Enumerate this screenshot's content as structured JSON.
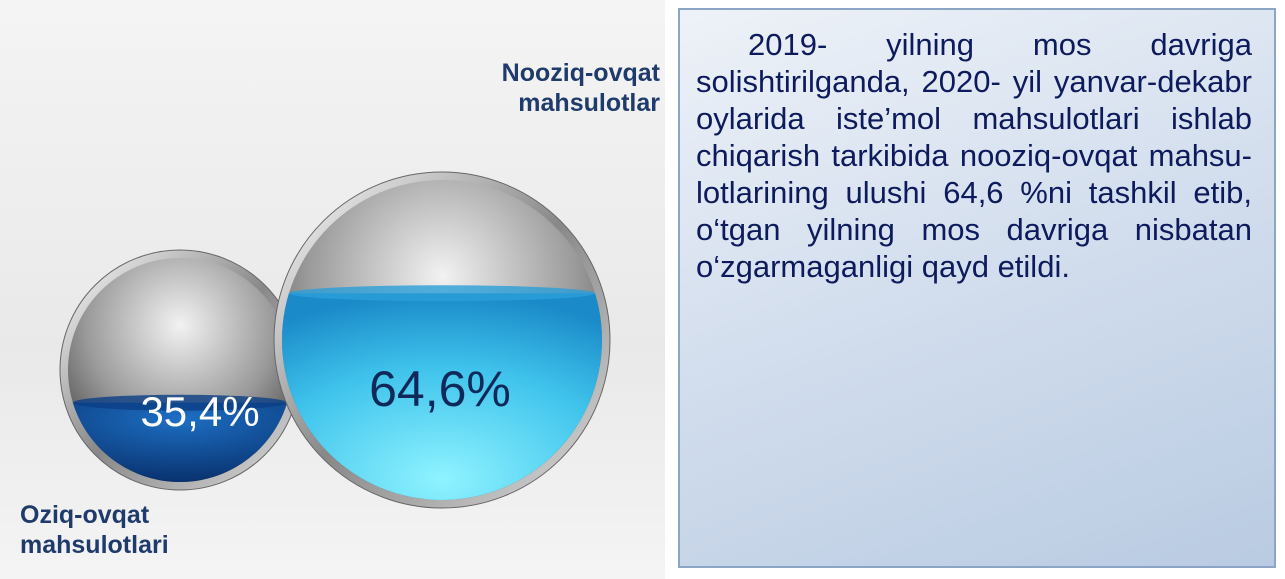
{
  "chart_data": {
    "type": "sphere-fill",
    "categories": [
      "Oziq-ovqat mahsulotlari",
      "Nooziq-ovqat mahsulotlar"
    ],
    "values": [
      35.4,
      64.6
    ],
    "value_labels": [
      "35,4%",
      "64,6%"
    ]
  },
  "text": {
    "paragraph": "2019- yilning mos davriga solishtirilganda, 2020- yil yanvar-dekabr oylarida iste’mol mahsulotlari ishlab chiqarish tarkibida nooziq-ovqat mahsu-lotlarining ulushi 64,6 %ni tashkil etib, o‘tgan yilning mos davriga nisbatan o‘zgarmaganligi qayd etildi."
  }
}
